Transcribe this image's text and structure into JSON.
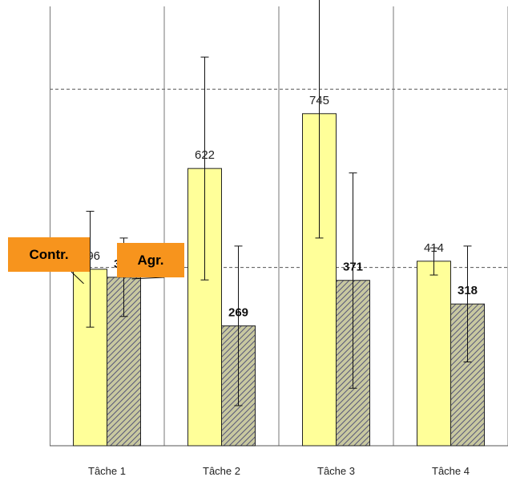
{
  "chart_data": {
    "type": "bar",
    "categories": [
      "Tâche 1",
      "Tâche 2",
      "Tâche 3",
      "Tâche 4"
    ],
    "ylim": [
      0,
      1000
    ],
    "grid": true,
    "series": [
      {
        "name": "Contr.",
        "values": [
          396,
          622,
          745,
          414
        ],
        "error_low": [
          266,
          372,
          466,
          383
        ],
        "error_high": [
          526,
          872,
          1024,
          444
        ],
        "color": "#ffff99"
      },
      {
        "name": "Agr.",
        "values": [
          378,
          269,
          371,
          318
        ],
        "error_low": [
          290,
          90,
          129,
          188
        ],
        "error_high": [
          466,
          448,
          612,
          448
        ],
        "color": "#c8c8a0"
      }
    ],
    "data_labels": [
      "396",
      "378",
      "622",
      "269",
      "745",
      "371",
      "414",
      "318"
    ]
  },
  "annotations": {
    "contr_label": "Contr.",
    "agr_label": "Agr."
  },
  "colors": {
    "contr_fill": "#ffff99",
    "agr_fill": "#c8c8a0",
    "agr_hatch": "#555577",
    "callout": "#f7941d"
  }
}
